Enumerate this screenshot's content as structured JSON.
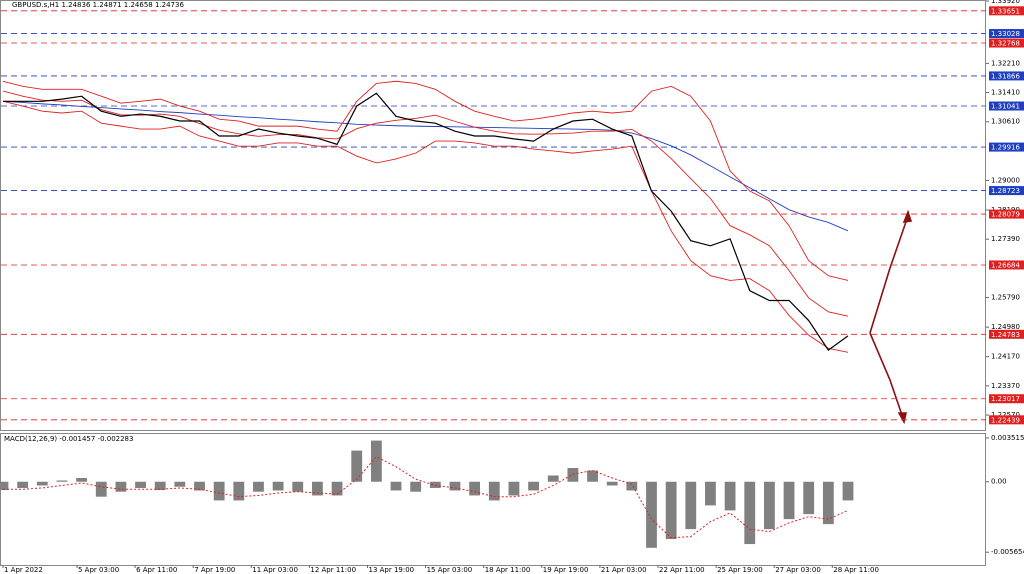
{
  "chart_data": [
    {
      "type": "line",
      "title": "GBPUSD.s,H1  1.24836 1.24871 1.24658 1.24736",
      "ylim": [
        1.2216,
        1.3392
      ],
      "yticks": [
        {
          "value": 1.3392,
          "label": "1.33920"
        },
        {
          "value": 1.3221,
          "label": "1.32210"
        },
        {
          "value": 1.3141,
          "label": "1.31410"
        },
        {
          "value": 1.3061,
          "label": "1.30610"
        },
        {
          "value": 1.29,
          "label": "1.29000"
        },
        {
          "value": 1.2819,
          "label": "1.28190"
        },
        {
          "value": 1.2739,
          "label": "1.27390"
        },
        {
          "value": 1.2579,
          "label": "1.25790"
        },
        {
          "value": 1.2498,
          "label": "1.24980"
        },
        {
          "value": 1.2417,
          "label": "1.24170"
        },
        {
          "value": 1.2337,
          "label": "1.23370"
        },
        {
          "value": 1.2257,
          "label": "1.22570"
        }
      ],
      "levels": [
        {
          "value": 1.33651,
          "color": "#e02020"
        },
        {
          "value": 1.33028,
          "color": "#1f3fbf"
        },
        {
          "value": 1.32768,
          "color": "#e02020"
        },
        {
          "value": 1.31866,
          "color": "#1f3fbf"
        },
        {
          "value": 1.31041,
          "color": "#1f3fbf"
        },
        {
          "value": 1.29916,
          "color": "#1f3fbf"
        },
        {
          "value": 1.28723,
          "color": "#1f3fbf"
        },
        {
          "value": 1.28079,
          "color": "#e02020"
        },
        {
          "value": 1.26684,
          "color": "#e02020"
        },
        {
          "value": 1.24783,
          "color": "#e02020"
        },
        {
          "value": 1.23017,
          "color": "#e02020"
        },
        {
          "value": 1.22439,
          "color": "#e02020"
        }
      ],
      "series": [
        {
          "color": "#1f3fbf",
          "values": [
            1.3117,
            1.3114,
            1.311,
            1.3107,
            1.3103,
            1.31,
            1.3096,
            1.3093,
            1.3089,
            1.3086,
            1.3082,
            1.3079,
            1.3075,
            1.3072,
            1.3068,
            1.3065,
            1.3061,
            1.3058,
            1.3054,
            1.3052,
            1.305,
            1.3049,
            1.3048,
            1.3047,
            1.3046,
            1.3045,
            1.3044,
            1.3043,
            1.3042,
            1.3041,
            1.304,
            1.3038,
            1.303,
            1.3015,
            1.2995,
            1.297,
            1.294,
            1.291,
            1.288,
            1.285,
            1.282,
            1.28,
            1.2785,
            1.2762
          ]
        },
        {
          "color": "#e02020",
          "values": [
            1.3172,
            1.3158,
            1.315,
            1.315,
            1.315,
            1.3131,
            1.3112,
            1.3117,
            1.3123,
            1.3104,
            1.309,
            1.3068,
            1.3063,
            1.3049,
            1.3049,
            1.3049,
            1.3041,
            1.3035,
            1.3117,
            1.3166,
            1.3172,
            1.3166,
            1.315,
            1.3117,
            1.309,
            1.3076,
            1.3063,
            1.3068,
            1.3076,
            1.3085,
            1.309,
            1.3085,
            1.309,
            1.3145,
            1.3158,
            1.3131,
            1.3063,
            1.2926,
            1.2871,
            1.2844,
            1.2776,
            1.268,
            1.2639,
            1.2626
          ]
        },
        {
          "color": "#e02020",
          "values": [
            1.3145,
            1.3131,
            1.312,
            1.3117,
            1.312,
            1.3094,
            1.308,
            1.3079,
            1.3082,
            1.3076,
            1.3056,
            1.3038,
            1.3028,
            1.3021,
            1.3026,
            1.3026,
            1.3017,
            1.3014,
            1.3042,
            1.3057,
            1.3065,
            1.307,
            1.3079,
            1.3062,
            1.3046,
            1.3035,
            1.3028,
            1.3027,
            1.3028,
            1.303,
            1.3035,
            1.3035,
            1.304,
            1.3008,
            1.296,
            1.2905,
            1.2851,
            1.2776,
            1.2751,
            1.2721,
            1.2653,
            1.2578,
            1.254,
            1.2528
          ]
        },
        {
          "color": "#e02020",
          "values": [
            1.3117,
            1.3104,
            1.309,
            1.3085,
            1.309,
            1.3057,
            1.3049,
            1.3041,
            1.3041,
            1.3049,
            1.3022,
            1.3008,
            1.2994,
            1.2994,
            1.3003,
            1.3003,
            1.2994,
            1.2994,
            1.2967,
            1.2948,
            1.2959,
            1.2975,
            1.3008,
            1.3008,
            1.3003,
            1.2994,
            1.2994,
            1.2986,
            1.2981,
            1.2975,
            1.2981,
            1.2986,
            1.2994,
            1.2871,
            1.2762,
            1.268,
            1.2639,
            1.2626,
            1.2631,
            1.2598,
            1.253,
            1.2476,
            1.244,
            1.2429
          ]
        },
        {
          "color": "#000000",
          "values": [
            1.3117,
            1.3117,
            1.3117,
            1.3123,
            1.3131,
            1.309,
            1.3076,
            1.3082,
            1.3076,
            1.3063,
            1.3063,
            1.3022,
            1.3022,
            1.3041,
            1.303,
            1.3022,
            1.3016,
            1.2999,
            1.3104,
            1.3139,
            1.3076,
            1.3063,
            1.3057,
            1.3035,
            1.3022,
            1.3022,
            1.3014,
            1.3008,
            1.3041,
            1.3063,
            1.3068,
            1.3041,
            1.3022,
            1.2871,
            1.2816,
            1.2735,
            1.2721,
            1.274,
            1.2598,
            1.2571,
            1.2571,
            1.2516,
            1.2435,
            1.2474
          ]
        }
      ]
    },
    {
      "type": "macd",
      "title": "MACD(12,26,9) -0.001457 -0.002283",
      "ylim": [
        -0.00668,
        0.00383
      ],
      "yticks": [
        0.003515,
        {
          "value": 0,
          "label": "0.00"
        },
        -0.005654
      ],
      "x_labels": [
        "1 Apr 2022",
        "5 Apr 03:00",
        "6 Apr 11:00",
        "7 Apr 19:00",
        "11 Apr 03:00",
        "12 Apr 11:00",
        "13 Apr 19:00",
        "15 Apr 03:00",
        "18 Apr 11:00",
        "19 Apr 19:00",
        "21 Apr 03:00",
        "22 Apr 11:00",
        "25 Apr 19:00",
        "27 Apr 03:00",
        "28 Apr 11:00"
      ],
      "series": [
        {
          "type": "bar",
          "color": "#808080",
          "values": [
            -0.00067,
            -0.0005,
            -0.0003,
            0.0001,
            0.0003,
            -0.0012,
            -0.0008,
            -0.0005,
            -0.00067,
            -0.0004,
            -0.0007,
            -0.0015,
            -0.0015,
            -0.0008,
            -0.0007,
            -0.0008,
            -0.0011,
            -0.0011,
            0.0025,
            0.0033,
            -0.0007,
            -0.0008,
            -0.0005,
            -0.0007,
            -0.0011,
            -0.0015,
            -0.0011,
            -0.0007,
            0.0005,
            0.0011,
            0.0009,
            -0.0003,
            -0.0007,
            -0.0053,
            -0.0046,
            -0.0038,
            -0.0019,
            -0.0023,
            -0.005,
            -0.0038,
            -0.003,
            -0.0026,
            -0.0034,
            -0.0015
          ]
        },
        {
          "type": "line",
          "color": "#e02020",
          "values": [
            -0.0006,
            -0.0006,
            -0.0005,
            -0.0003,
            -0.0001,
            -0.0004,
            -0.0006,
            -0.0006,
            -0.0006,
            -0.0005,
            -0.0006,
            -0.0009,
            -0.0012,
            -0.0011,
            -0.0009,
            -0.0008,
            -0.0009,
            -0.001,
            0.0002,
            0.002,
            0.0012,
            0.0002,
            -0.0003,
            -0.0005,
            -0.0008,
            -0.0012,
            -0.0012,
            -0.001,
            -0.0003,
            0.0006,
            0.0009,
            0.0003,
            -0.0002,
            -0.003,
            -0.0045,
            -0.0044,
            -0.0032,
            -0.0025,
            -0.0038,
            -0.004,
            -0.0033,
            -0.0028,
            -0.003,
            -0.0023
          ]
        }
      ]
    }
  ]
}
